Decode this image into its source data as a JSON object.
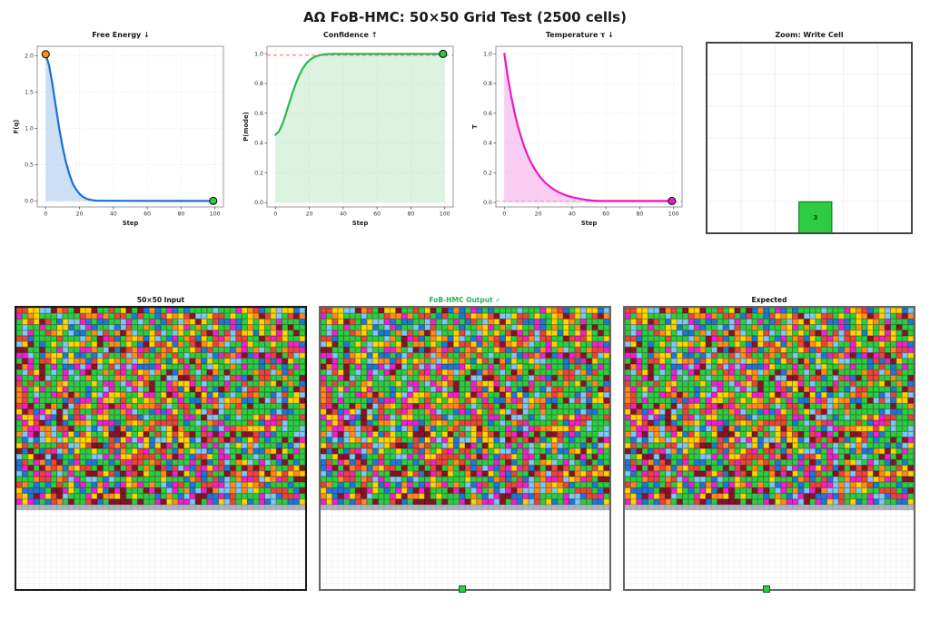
{
  "header": {
    "title": "ΑΩ FoB-HMC: 50×50 Grid Test (2500 cells)"
  },
  "chart_data": [
    {
      "type": "area",
      "title": "Free Energy ↓",
      "xlabel": "Step",
      "ylabel": "F(q)",
      "xlim": [
        -5,
        105
      ],
      "ylim": [
        -0.08,
        2.13
      ],
      "xticks": [
        0,
        20,
        40,
        60,
        80,
        100
      ],
      "yticks": [
        0.0,
        0.5,
        1.0,
        1.5,
        2.0
      ],
      "line_color": "#1b6fd1",
      "fill_color": "#1b6fd1",
      "fill_opacity": 0.22,
      "x": [
        0,
        2,
        4,
        6,
        8,
        10,
        12,
        14,
        16,
        18,
        20,
        22,
        24,
        26,
        28,
        30,
        35,
        40,
        50,
        60,
        70,
        80,
        90,
        99,
        100
      ],
      "y": [
        2.02,
        1.87,
        1.6,
        1.3,
        1.0,
        0.74,
        0.53,
        0.37,
        0.24,
        0.16,
        0.1,
        0.06,
        0.035,
        0.02,
        0.011,
        0.006,
        0.005,
        0.005,
        0.004,
        0.004,
        0.003,
        0.003,
        0.003,
        0.003,
        0.003
      ],
      "start_marker": {
        "x": 0,
        "y": 2.02,
        "color": "#ff8c1a"
      },
      "end_marker": {
        "x": 99,
        "y": 0.003,
        "color": "#2ecc40"
      }
    },
    {
      "type": "area",
      "title": "Confidence ↑",
      "xlabel": "Step",
      "ylabel": "P(mode)",
      "xlim": [
        -5,
        105
      ],
      "ylim": [
        -0.03,
        1.05
      ],
      "xticks": [
        0,
        20,
        40,
        60,
        80,
        100
      ],
      "yticks": [
        0.0,
        0.2,
        0.4,
        0.6,
        0.8,
        1.0
      ],
      "line_color": "#2db84d",
      "fill_color": "#2db84d",
      "fill_opacity": 0.17,
      "dashed_line": {
        "y": 0.99,
        "color": "#ff6b6b"
      },
      "x": [
        0,
        2,
        4,
        6,
        8,
        10,
        12,
        14,
        16,
        18,
        20,
        22,
        24,
        26,
        28,
        30,
        32,
        34,
        36,
        40,
        50,
        60,
        70,
        80,
        90,
        99,
        100
      ],
      "y": [
        0.455,
        0.476,
        0.525,
        0.591,
        0.664,
        0.735,
        0.799,
        0.854,
        0.898,
        0.932,
        0.956,
        0.972,
        0.983,
        0.99,
        0.994,
        0.997,
        0.998,
        0.999,
        0.999,
        0.999,
        0.999,
        0.999,
        0.999,
        0.999,
        0.999,
        0.999,
        0.999
      ],
      "end_marker": {
        "x": 99,
        "y": 0.999,
        "color": "#2ecc40"
      }
    },
    {
      "type": "area",
      "title": "Temperature τ ↓",
      "xlabel": "Step",
      "ylabel": "T",
      "xlim": [
        -5,
        105
      ],
      "ylim": [
        -0.03,
        1.05
      ],
      "xticks": [
        0,
        20,
        40,
        60,
        80,
        100
      ],
      "yticks": [
        0.0,
        0.2,
        0.4,
        0.6,
        0.8,
        1.0
      ],
      "line_color": "#e91bc4",
      "fill_color": "#e91bc4",
      "fill_opacity": 0.22,
      "dashed_line": {
        "y": 0.01,
        "color": "#bbbbbb"
      },
      "x": [
        0,
        2,
        4,
        6,
        8,
        10,
        12,
        14,
        16,
        18,
        20,
        22,
        24,
        26,
        28,
        30,
        32,
        34,
        36,
        38,
        40,
        44,
        48,
        52,
        56,
        60,
        70,
        80,
        90,
        99,
        100
      ],
      "y": [
        1.0,
        0.846,
        0.717,
        0.607,
        0.513,
        0.435,
        0.368,
        0.311,
        0.264,
        0.223,
        0.189,
        0.16,
        0.135,
        0.115,
        0.097,
        0.082,
        0.069,
        0.059,
        0.05,
        0.042,
        0.036,
        0.026,
        0.018,
        0.013,
        0.01,
        0.01,
        0.01,
        0.01,
        0.01,
        0.01,
        0.01
      ],
      "end_marker": {
        "x": 99,
        "y": 0.01,
        "color": "#e91bc4"
      }
    },
    {
      "type": "cell",
      "title": "Zoom: Write Cell",
      "grid_divisions": 6,
      "cell": {
        "label": "3",
        "color": "#2ecc40",
        "border": "#1c7a2c",
        "left_frac": 0.45,
        "width_frac": 0.16,
        "height_frac": 0.165
      }
    }
  ],
  "grids": {
    "rows": 50,
    "cols": 50,
    "colored_rows": 35,
    "gray_row_index": 35,
    "seed": 20240917,
    "palette_order": [
      "green",
      "blue",
      "red",
      "orange",
      "yellow",
      "magenta",
      "sky",
      "maroon"
    ],
    "palette": {
      "green": "#2ecc40",
      "blue": "#1e78d2",
      "red": "#e8463a",
      "orange": "#ff8c1a",
      "yellow": "#ffd500",
      "magenta": "#ee22cc",
      "sky": "#7fc8f2",
      "maroon": "#871425"
    },
    "weights": [
      0.3,
      0.11,
      0.11,
      0.1,
      0.1,
      0.1,
      0.09,
      0.09
    ],
    "gray_row_color": "#b3b3b3",
    "gray_row_line": "#7aa7dc",
    "empty_line_color": "#f1e9ea",
    "cell_edge": "rgba(0,0,0,0.38)",
    "write_cell": {
      "row": 49,
      "col": 24,
      "color": "#2ecc40"
    },
    "panels": [
      {
        "id": "input",
        "title": "50×50 Input",
        "title_color": "#111111",
        "border": "#1a1a1a",
        "has_write_cell": false
      },
      {
        "id": "output",
        "title": "FoB-HMC Output ✓",
        "title_color": "#28b44b",
        "border": "#666666",
        "has_write_cell": true
      },
      {
        "id": "expected",
        "title": "Expected",
        "title_color": "#111111",
        "border": "#666666",
        "has_write_cell": true
      }
    ]
  }
}
